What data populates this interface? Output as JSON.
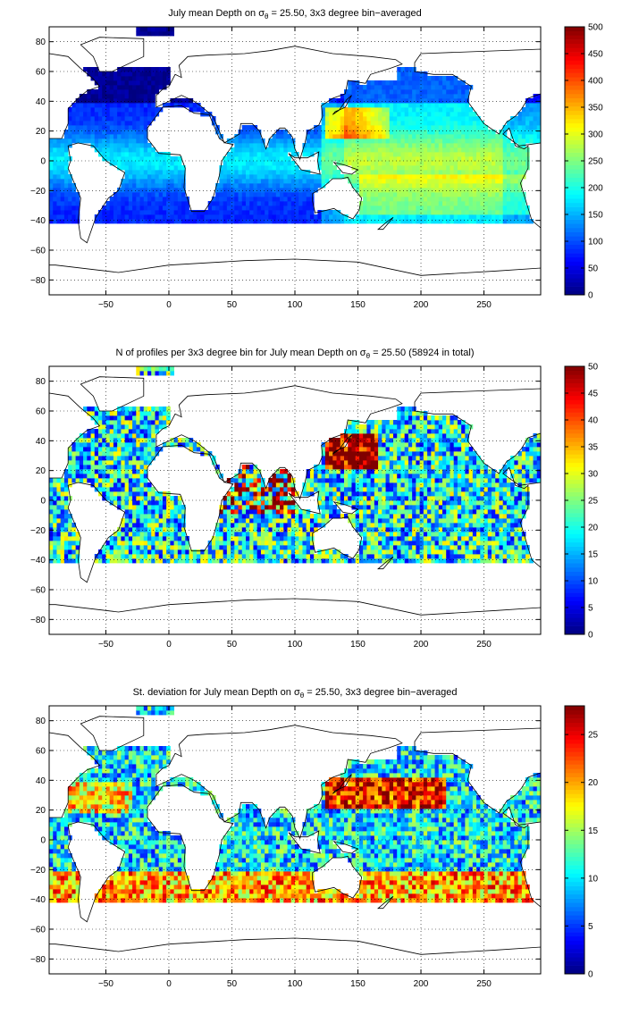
{
  "chart_data": [
    {
      "type": "heatmap",
      "title": "July mean Depth on σθ = 25.50, 3x3 degree bin−averaged",
      "title_parts": {
        "prefix": "July mean Depth on σ",
        "sub": "θ",
        "suffix": " = 25.50, 3x3 degree bin−averaged"
      },
      "xlim": [
        -95,
        295
      ],
      "ylim": [
        -90,
        90
      ],
      "x_ticks": [
        -50,
        0,
        50,
        100,
        150,
        200,
        250
      ],
      "y_ticks": [
        -80,
        -60,
        -40,
        -20,
        0,
        20,
        40,
        60,
        80
      ],
      "grid": true,
      "colormap": "jet",
      "colorbar": {
        "range": [
          0,
          500
        ],
        "ticks": [
          0,
          50,
          100,
          150,
          200,
          250,
          300,
          350,
          400,
          450,
          500
        ]
      }
    },
    {
      "type": "heatmap",
      "title": "N of profiles per 3x3 degree bin for July mean Depth on σθ = 25.50 (58924 in total)",
      "title_parts": {
        "prefix": "N of profiles per 3x3 degree bin for July mean Depth on σ",
        "sub": "θ",
        "suffix": " = 25.50 (58924 in total)"
      },
      "xlim": [
        -95,
        295
      ],
      "ylim": [
        -90,
        90
      ],
      "x_ticks": [
        -50,
        0,
        50,
        100,
        150,
        200,
        250
      ],
      "y_ticks": [
        -80,
        -60,
        -40,
        -20,
        0,
        20,
        40,
        60,
        80
      ],
      "grid": true,
      "colormap": "jet",
      "colorbar": {
        "range": [
          0,
          50
        ],
        "ticks": [
          0,
          5,
          10,
          15,
          20,
          25,
          30,
          35,
          40,
          45,
          50
        ]
      }
    },
    {
      "type": "heatmap",
      "title": "St. deviation for July mean Depth on σθ = 25.50, 3x3 degree bin−averaged",
      "title_parts": {
        "prefix": "St. deviation for July mean Depth on σ",
        "sub": "θ",
        "suffix": " = 25.50, 3x3 degree bin−averaged"
      },
      "xlim": [
        -95,
        295
      ],
      "ylim": [
        -90,
        90
      ],
      "x_ticks": [
        -50,
        0,
        50,
        100,
        150,
        200,
        250
      ],
      "y_ticks": [
        -80,
        -60,
        -40,
        -20,
        0,
        20,
        40,
        60,
        80
      ],
      "grid": true,
      "colormap": "jet",
      "colorbar": {
        "range": [
          0,
          28
        ],
        "ticks": [
          0,
          5,
          10,
          15,
          20,
          25
        ]
      }
    }
  ]
}
